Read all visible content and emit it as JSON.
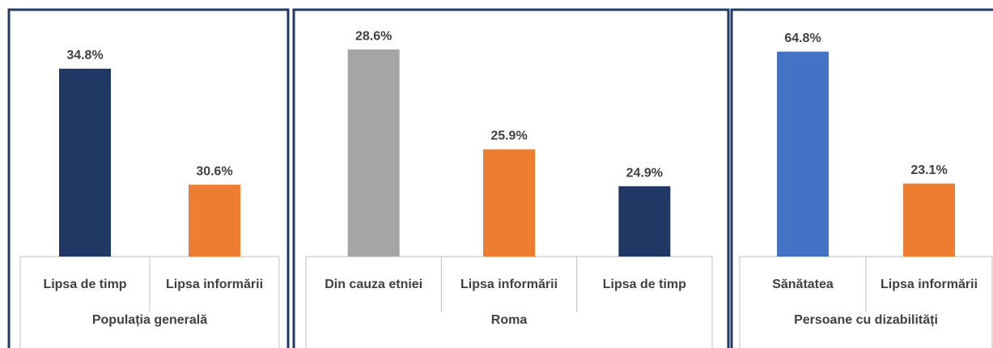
{
  "chart_data": [
    {
      "type": "bar",
      "group_label": "Populația generală",
      "categories": [
        "Lipsa de timp",
        "Lipsa informării"
      ],
      "values": [
        34.8,
        30.6
      ],
      "value_labels": [
        "34.8%",
        "30.6%"
      ],
      "colors": [
        "#1f3864",
        "#ed7d31"
      ],
      "ylim": [
        28,
        36.7
      ]
    },
    {
      "type": "bar",
      "group_label": "Roma",
      "categories": [
        "Din cauza etniei",
        "Lipsa informării",
        "Lipsa de timp"
      ],
      "values": [
        28.6,
        25.9,
        24.9
      ],
      "value_labels": [
        "28.6%",
        "25.9%",
        "24.9%"
      ],
      "colors": [
        "#a5a5a5",
        "#ed7d31",
        "#1f3864"
      ],
      "ylim": [
        23,
        29.5
      ]
    },
    {
      "type": "bar",
      "group_label": "Persoane cu dizabilități",
      "categories": [
        "Sănătatea",
        "Lipsa informării"
      ],
      "values": [
        64.8,
        23.1
      ],
      "value_labels": [
        "64.8%",
        "23.1%"
      ],
      "colors": [
        "#4472c4",
        "#ed7d31"
      ],
      "ylim": [
        0,
        76
      ]
    }
  ]
}
